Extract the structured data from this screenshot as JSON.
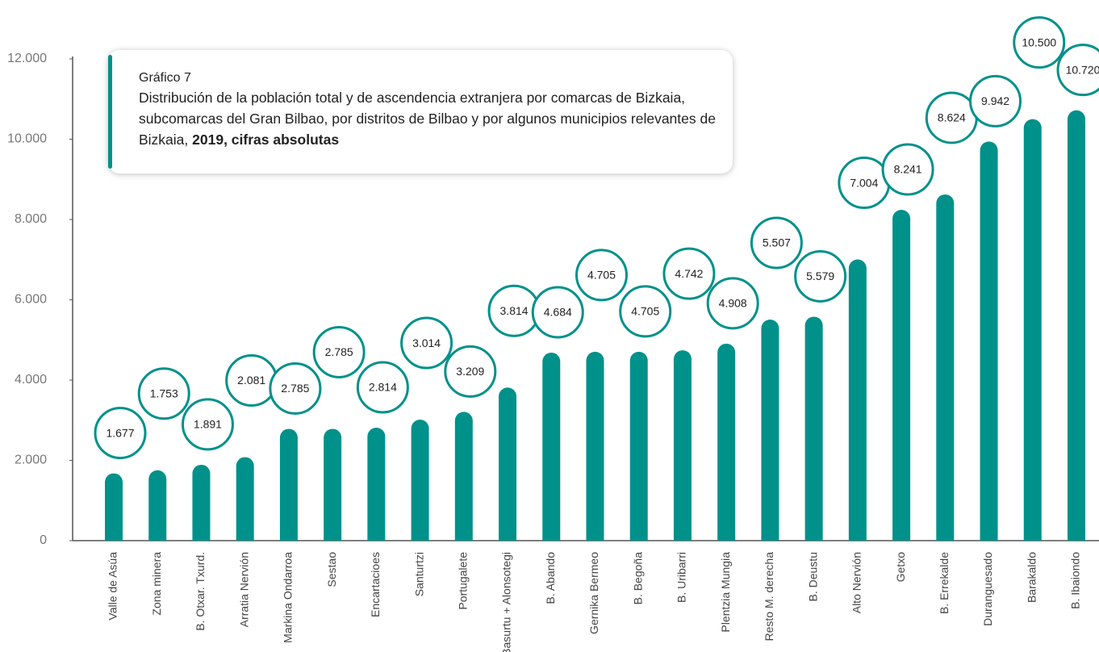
{
  "chart_data": {
    "type": "bar",
    "chart_label": "Gráfico 7",
    "title": "Distribución de la población total y de ascendencia extranjera por comarcas de Bizkaia, subcomarcas del Gran Bilbao, por distritos de Bilbao y por algunos municipios relevantes de Bizkaia,",
    "title_emphasis": "2019, cifras absolutas",
    "categories": [
      "Valle de Asúa",
      "Zona minera",
      "B. Otxar. Txurd.",
      "Arratia Nervión",
      "Markina Ondarroa",
      "Sestao",
      "Encartacioes",
      "Santurtzi",
      "Portugalete",
      "B. Basurtu + Alonsotegi",
      "B. Abando",
      "Gernika Bermeo",
      "B. Begoña",
      "B. Uribarri",
      "Plentzia Mungia",
      "Resto M. derecha",
      "B. Deustu",
      "Alto Nervión",
      "Getxo",
      "B. Errekalde",
      "Duranguesado",
      "Barakaldo",
      "B. Ibaiondo"
    ],
    "values": [
      1677,
      1753,
      1891,
      2081,
      2785,
      2785,
      2814,
      3014,
      3209,
      3814,
      4684,
      4705,
      4705,
      4742,
      4908,
      5507,
      5579,
      7004,
      8241,
      8624,
      9942,
      10500,
      10720
    ],
    "value_labels": [
      "1.677",
      "1.753",
      "1.891",
      "2.081",
      "2.785",
      "2.785",
      "2.814",
      "3.014",
      "3.209",
      "3.814",
      "4.684",
      "4.705",
      "4.705",
      "4.742",
      "4.908",
      "5.507",
      "5.579",
      "7.004",
      "8.241",
      "8.624",
      "9.942",
      "10.500",
      "10.720"
    ],
    "color": "#00918a",
    "ylim": [
      0,
      12000
    ],
    "yticks": [
      0,
      {
        "value": 2000,
        "label": "2.000"
      },
      {
        "value": 4000,
        "label": "4.000"
      },
      {
        "value": 6000,
        "label": "6.000"
      },
      {
        "value": 8000,
        "label": "8.000"
      },
      {
        "value": 10000,
        "label": "10.000"
      },
      {
        "value": 12000,
        "label": "12.000"
      }
    ],
    "grid": false
  }
}
